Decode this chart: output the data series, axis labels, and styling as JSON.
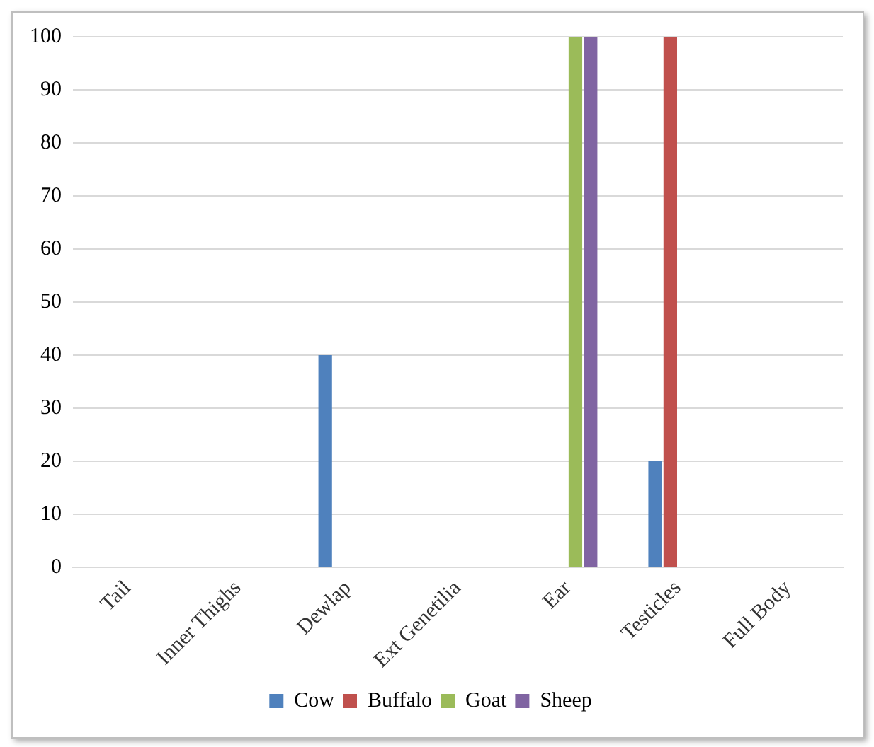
{
  "chart_data": {
    "type": "bar",
    "categories": [
      "Tail",
      "Inner Thighs",
      "Dewlap",
      "Ext Genetilia",
      "Ear",
      "Testicles",
      "Full Body"
    ],
    "series": [
      {
        "name": "Cow",
        "color": "#4f81bd",
        "values": [
          0,
          0,
          40,
          0,
          0,
          20,
          0
        ]
      },
      {
        "name": "Buffalo",
        "color": "#c0504d",
        "values": [
          0,
          0,
          0,
          0,
          0,
          100,
          0
        ]
      },
      {
        "name": "Goat",
        "color": "#9bbb59",
        "values": [
          0,
          0,
          0,
          0,
          100,
          0,
          0
        ]
      },
      {
        "name": "Sheep",
        "color": "#8064a2",
        "values": [
          0,
          0,
          0,
          0,
          100,
          0,
          0
        ]
      }
    ],
    "ylim": [
      0,
      100
    ],
    "yticks": [
      0,
      10,
      20,
      30,
      40,
      50,
      60,
      70,
      80,
      90,
      100
    ],
    "grid": "y",
    "legend": "bottom"
  }
}
